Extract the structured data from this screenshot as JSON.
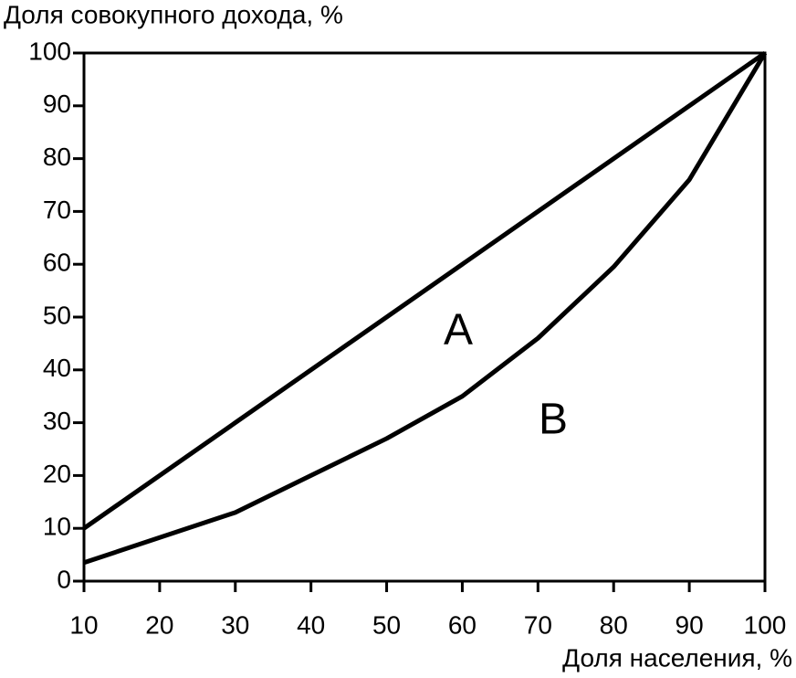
{
  "chart_data": {
    "type": "line",
    "ylabel": "Доля совокупного дохода, %",
    "xlabel": "Доля населения, %",
    "series": [
      {
        "color": "#000000",
        "x": [
          10,
          100
        ],
        "values": [
          10,
          100
        ]
      },
      {
        "color": "#000000",
        "x": [
          10,
          30,
          40,
          50,
          60,
          70,
          80,
          90,
          100
        ],
        "values": [
          3.5,
          13,
          20,
          27,
          35,
          46,
          59.5,
          76,
          100
        ]
      }
    ],
    "annotations": [
      "A",
      "B"
    ],
    "xlim": [
      10,
      100
    ],
    "xticks": [
      10,
      20,
      30,
      40,
      50,
      60,
      70,
      80,
      90,
      100
    ],
    "ylim": [
      0,
      100
    ],
    "yticks": [
      0,
      10,
      20,
      30,
      40,
      50,
      60,
      70,
      80,
      90,
      100
    ],
    "grid": false
  }
}
